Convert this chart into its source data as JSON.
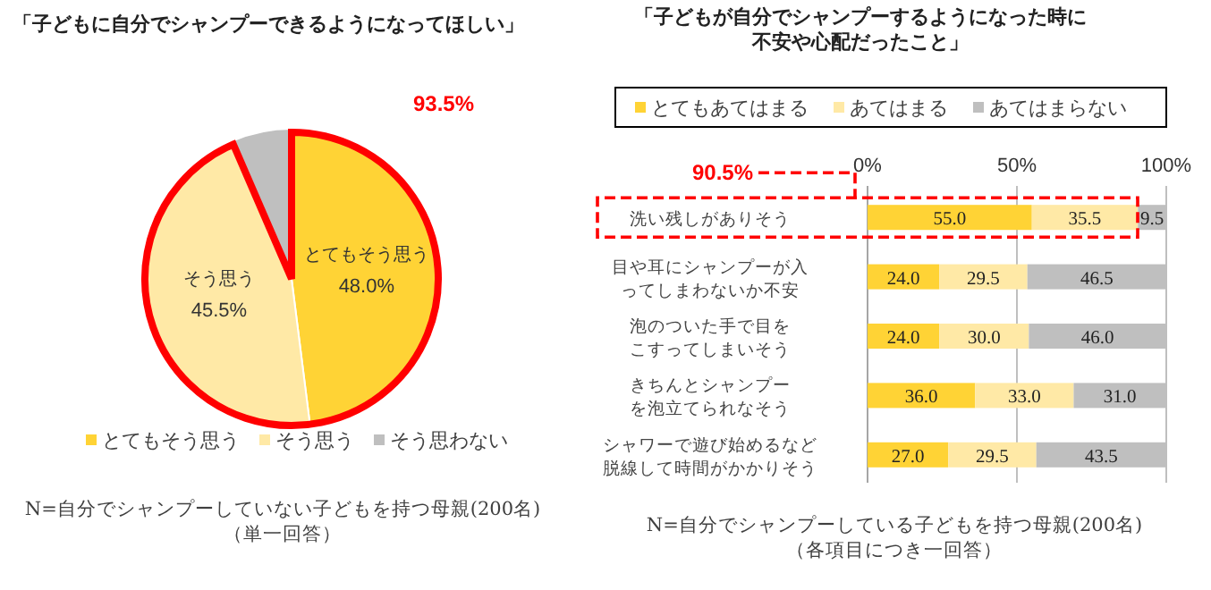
{
  "chart_data": [
    {
      "type": "pie",
      "title": "「子どもに自分でシャンプーできるようになってほしい」",
      "categories": [
        "とてもそう思う",
        "そう思う",
        "そう思わない"
      ],
      "values": [
        48.0,
        45.5,
        6.5
      ],
      "colors": [
        "#ffd335",
        "#ffe9a6",
        "#bfbfbf"
      ],
      "value_labels": [
        "48.0%",
        "45.5%",
        null
      ],
      "legend": "bottom",
      "annotations": [
        "93.5%",
        "N=自分でシャンプーしていない子どもを持つ母親(200名)",
        "（単一回答）"
      ]
    },
    {
      "type": "bar",
      "orientation": "horizontal",
      "stacked": true,
      "title": "「子どもが自分でシャンプーするようになった時に不安や心配だったこと」",
      "categories": [
        "洗い残しがありそう",
        "目や耳にシャンプーが入ってしまわないか不安",
        "泡のついた手で目をこすってしまいそう",
        "きちんとシャンプーを泡立てられなそう",
        "シャワーで遊び始めるなど脱線して時間がかかりそう"
      ],
      "series": [
        {
          "name": "とてもあてはまる",
          "color": "#ffd335",
          "values": [
            55.0,
            24.0,
            24.0,
            36.0,
            27.0
          ],
          "value_labels": [
            "55.0",
            "24.0",
            "24.0",
            "36.0",
            "27.0"
          ]
        },
        {
          "name": "あてはまる",
          "color": "#ffe9a6",
          "values": [
            35.5,
            29.5,
            30.0,
            33.0,
            29.5
          ],
          "value_labels": [
            "35.5",
            "29.5",
            "30.0",
            "33.0",
            "29.5"
          ]
        },
        {
          "name": "あてはまらない",
          "color": "#bfbfbf",
          "values": [
            9.5,
            46.5,
            46.0,
            31.0,
            43.5
          ],
          "value_labels": [
            "9.5",
            "46.5",
            "46.0",
            "31.0",
            "43.5"
          ]
        }
      ],
      "xlim": [
        0,
        100
      ],
      "xticks": [
        {
          "value": 0,
          "label": "0%"
        },
        {
          "value": 50,
          "label": "50%"
        },
        {
          "value": 100,
          "label": "100%"
        }
      ],
      "grid": "x",
      "legend": "top",
      "annotations": [
        "90.5%",
        "N=自分でシャンプーしている子どもを持つ母親(200名)",
        "（各項目につき一回答）"
      ]
    }
  ]
}
